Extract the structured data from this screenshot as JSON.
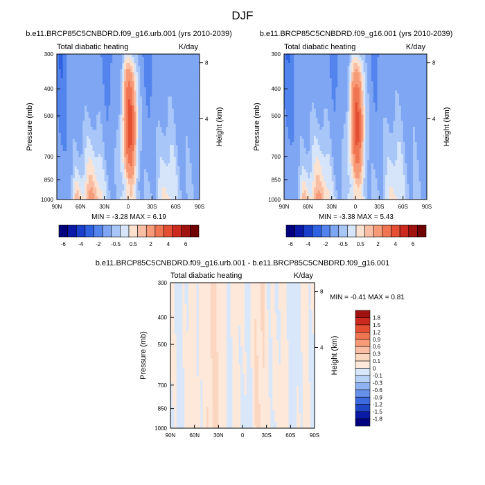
{
  "figure_title": "DJF",
  "chart_data": [
    {
      "type": "heatmap",
      "title": "b.e11.BRCP85C5CNBDRD.f09_g16.urb.001 (yrs 2010-2039)",
      "subtitle_left": "Total diabatic heating",
      "subtitle_right": "K/day",
      "xlabel": "",
      "ylabel": "Pressure (mb)",
      "ylabel_right": "Height (km)",
      "x_ticks": [
        "90N",
        "60N",
        "30N",
        "0",
        "30S",
        "60S",
        "90S"
      ],
      "y_ticks": [
        "300",
        "400",
        "500",
        "700",
        "850",
        "1000"
      ],
      "y_right_ticks": [
        "8",
        "4"
      ],
      "stats_text": "MIN = -3.28  MAX =  6.19",
      "min": -3.28,
      "max": 6.19,
      "colorbar_labels": [
        "-6",
        "-4",
        "-2",
        "-0.5",
        "0.5",
        "2",
        "4",
        "6"
      ]
    },
    {
      "type": "heatmap",
      "title": "b.e11.BRCP85C5CNBDRD.f09_g16.001 (yrs 2010-2039)",
      "subtitle_left": "Total diabatic heating",
      "subtitle_right": "K/day",
      "xlabel": "",
      "ylabel": "Pressure (mb)",
      "ylabel_right": "Height (km)",
      "x_ticks": [
        "90N",
        "60N",
        "30N",
        "0",
        "30S",
        "60S",
        "90S"
      ],
      "y_ticks": [
        "300",
        "400",
        "500",
        "700",
        "850",
        "1000"
      ],
      "y_right_ticks": [
        "8",
        "4"
      ],
      "stats_text": "MIN = -3.38  MAX =  5.43",
      "min": -3.38,
      "max": 5.43,
      "colorbar_labels": [
        "-6",
        "-4",
        "-2",
        "-0.5",
        "0.5",
        "2",
        "4",
        "6"
      ]
    },
    {
      "type": "heatmap",
      "title": "b.e11.BRCP85C5CNBDRD.f09_g16.urb.001 - b.e11.BRCP85C5CNBDRD.f09_g16.001",
      "subtitle_left": "Total diabatic heating",
      "subtitle_right": "K/day",
      "xlabel": "",
      "ylabel": "Pressure (mb)",
      "ylabel_right": "Height (km)",
      "x_ticks": [
        "90N",
        "60N",
        "30N",
        "0",
        "30S",
        "60S",
        "90S"
      ],
      "y_ticks": [
        "300",
        "400",
        "500",
        "700",
        "850",
        "1000"
      ],
      "y_right_ticks": [
        "8",
        "4"
      ],
      "stats_text": "MIN = -0.41  MAX =  0.81",
      "min": -0.41,
      "max": 0.81,
      "colorbar_labels": [
        "1.8",
        "1.5",
        "1.2",
        "0.9",
        "0.6",
        "0.3",
        "0.1",
        "0",
        "-0.1",
        "-0.3",
        "-0.6",
        "-0.9",
        "-1.2",
        "-1.5",
        "-1.8"
      ]
    }
  ],
  "colors": {
    "main_scale": [
      "#00007f",
      "#0a1aa6",
      "#1a3fcb",
      "#2e62e0",
      "#5384ee",
      "#7fa6f3",
      "#a9c6f8",
      "#d6e5fa",
      "#fde1cf",
      "#f9bea3",
      "#f69a78",
      "#ef7452",
      "#e44f33",
      "#cc2a1f",
      "#a0120e",
      "#700000"
    ],
    "diff_scale": [
      "#a0120e",
      "#cc2a1f",
      "#e44f33",
      "#ef7452",
      "#f69a78",
      "#f9bea3",
      "#fbd6c0",
      "#fde8da",
      "#d9e7fa",
      "#b8d2f7",
      "#8fb3f2",
      "#6690ea",
      "#3d6ade",
      "#1f46c4",
      "#0a1aa6",
      "#00007f"
    ]
  }
}
